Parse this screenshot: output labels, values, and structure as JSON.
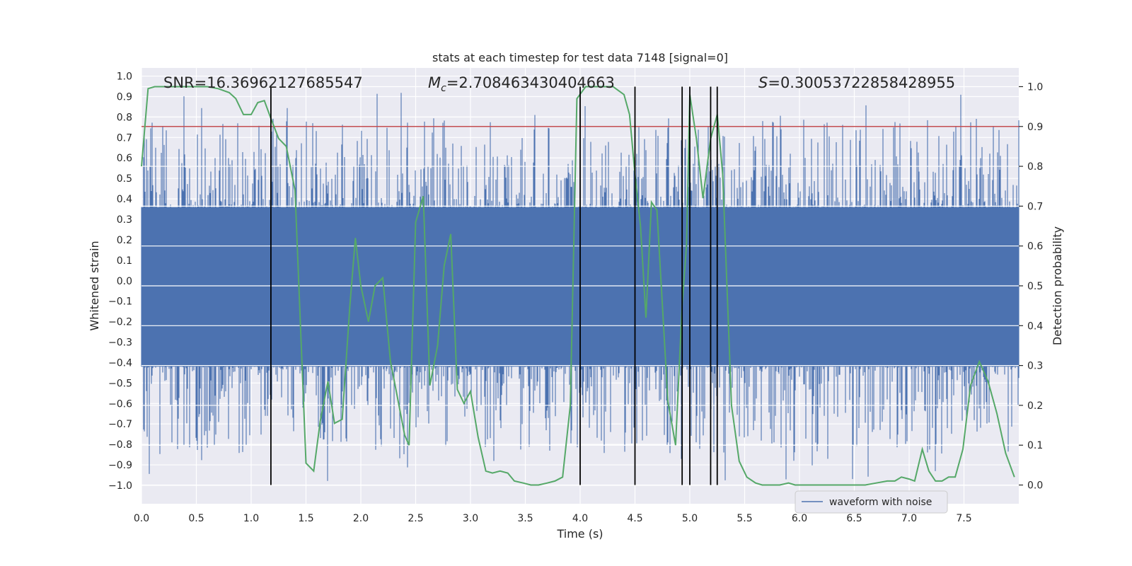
{
  "chart_data": {
    "type": "line",
    "title": "stats at each timestep for test data 7148 [signal=0]",
    "xlabel": "Time (s)",
    "ylabel_left": "Whitened strain",
    "ylabel_right": "Detection probability",
    "xlim": [
      0.0,
      8.0
    ],
    "ylim_left": [
      -1.09,
      1.04
    ],
    "ylim_right": [
      -0.047,
      1.047
    ],
    "x_ticks": [
      0.0,
      0.5,
      1.0,
      1.5,
      2.0,
      2.5,
      3.0,
      3.5,
      4.0,
      4.5,
      5.0,
      5.5,
      6.0,
      6.5,
      7.0,
      7.5
    ],
    "x_tick_labels": [
      "0.0",
      "0.5",
      "1.0",
      "1.5",
      "2.0",
      "2.5",
      "3.0",
      "3.5",
      "4.0",
      "4.5",
      "5.0",
      "5.5",
      "6.0",
      "6.5",
      "7.0",
      "7.5"
    ],
    "y_left_ticks": [
      1.0,
      0.9,
      0.8,
      0.7,
      0.6,
      0.5,
      0.4,
      0.3,
      0.2,
      0.1,
      0.0,
      -0.1,
      -0.2,
      -0.3,
      -0.4,
      -0.5,
      -0.6,
      -0.7,
      -0.8,
      -0.9,
      -1.0
    ],
    "y_left_tick_labels": [
      "1.0",
      "0.9",
      "0.8",
      "0.7",
      "0.6",
      "0.5",
      "0.4",
      "0.3",
      "0.2",
      "0.1",
      "0.0",
      "−0.1",
      "−0.2",
      "−0.3",
      "−0.4",
      "−0.5",
      "−0.6",
      "−0.7",
      "−0.8",
      "−0.9",
      "−1.0"
    ],
    "y_right_ticks": [
      1.0,
      0.9,
      0.8,
      0.7,
      0.6,
      0.5,
      0.4,
      0.3,
      0.2,
      0.1,
      0.0
    ],
    "y_right_tick_labels": [
      "1.0",
      "0.9",
      "0.8",
      "0.7",
      "0.6",
      "0.5",
      "0.4",
      "0.3",
      "0.2",
      "0.1",
      "0.0"
    ],
    "annotations": {
      "snr": "SNR=16.36962127685547",
      "mc_symbol": "M",
      "mc_sub": "c",
      "mc_value": "=2.708463430404663",
      "s_symbol": "S",
      "s_value": "=0.30053722858428955"
    },
    "threshold": {
      "value": 0.9,
      "color": "#c44e52"
    },
    "vertical_markers": [
      1.18,
      4.0,
      4.5,
      4.93,
      5.0,
      5.19,
      5.25
    ],
    "series": [
      {
        "name": "waveform with noise",
        "color": "#4c72b0",
        "axis": "left",
        "style": "dense-noise",
        "core_range": [
          -0.42,
          0.36
        ],
        "extreme_range": [
          -1.0,
          0.94
        ]
      },
      {
        "name": "detection probability",
        "color": "#55a868",
        "axis": "right",
        "x": [
          0.0,
          0.06,
          0.12,
          0.2,
          0.3,
          0.4,
          0.5,
          0.6,
          0.7,
          0.8,
          0.86,
          0.93,
          1.0,
          1.06,
          1.12,
          1.18,
          1.25,
          1.32,
          1.4,
          1.5,
          1.57,
          1.63,
          1.7,
          1.76,
          1.83,
          1.9,
          1.95,
          2.0,
          2.07,
          2.13,
          2.2,
          2.27,
          2.32,
          2.4,
          2.44,
          2.5,
          2.57,
          2.63,
          2.7,
          2.76,
          2.82,
          2.88,
          2.94,
          3.0,
          3.07,
          3.14,
          3.2,
          3.27,
          3.34,
          3.4,
          3.48,
          3.55,
          3.62,
          3.7,
          3.77,
          3.84,
          3.91,
          3.97,
          4.05,
          4.12,
          4.2,
          4.3,
          4.4,
          4.45,
          4.5,
          4.55,
          4.6,
          4.65,
          4.7,
          4.75,
          4.8,
          4.87,
          4.93,
          4.97,
          5.0,
          5.06,
          5.12,
          5.19,
          5.25,
          5.3,
          5.38,
          5.45,
          5.52,
          5.6,
          5.66,
          5.74,
          5.82,
          5.9,
          5.96,
          6.04,
          6.1,
          6.2,
          6.3,
          6.4,
          6.5,
          6.55,
          6.6,
          6.7,
          6.8,
          6.87,
          6.93,
          7.0,
          7.05,
          7.12,
          7.18,
          7.24,
          7.3,
          7.36,
          7.42,
          7.49,
          7.56,
          7.64,
          7.72,
          7.8,
          7.88,
          7.96
        ],
        "values": [
          0.8,
          0.995,
          1.0,
          1.0,
          1.0,
          1.0,
          1.0,
          1.0,
          0.995,
          0.985,
          0.97,
          0.93,
          0.93,
          0.96,
          0.965,
          0.92,
          0.87,
          0.85,
          0.74,
          0.055,
          0.035,
          0.16,
          0.26,
          0.155,
          0.165,
          0.45,
          0.62,
          0.5,
          0.41,
          0.5,
          0.52,
          0.31,
          0.24,
          0.125,
          0.1,
          0.66,
          0.725,
          0.25,
          0.35,
          0.55,
          0.63,
          0.24,
          0.205,
          0.235,
          0.12,
          0.035,
          0.03,
          0.035,
          0.03,
          0.01,
          0.005,
          0.0,
          0.0,
          0.005,
          0.01,
          0.02,
          0.2,
          0.97,
          1.0,
          1.0,
          1.0,
          1.0,
          0.98,
          0.93,
          0.78,
          0.65,
          0.42,
          0.71,
          0.69,
          0.45,
          0.21,
          0.1,
          0.45,
          0.6,
          0.98,
          0.87,
          0.72,
          0.87,
          0.93,
          0.78,
          0.2,
          0.06,
          0.02,
          0.005,
          0.0,
          0.0,
          0.0,
          0.005,
          0.0,
          0.0,
          0.0,
          0.0,
          0.0,
          0.0,
          0.0,
          0.0,
          0.0,
          0.005,
          0.01,
          0.01,
          0.02,
          0.015,
          0.01,
          0.09,
          0.035,
          0.01,
          0.01,
          0.02,
          0.02,
          0.09,
          0.25,
          0.31,
          0.26,
          0.18,
          0.08,
          0.02
        ]
      }
    ],
    "legend": {
      "position": "lower-right",
      "entries": [
        "waveform with noise"
      ]
    }
  }
}
